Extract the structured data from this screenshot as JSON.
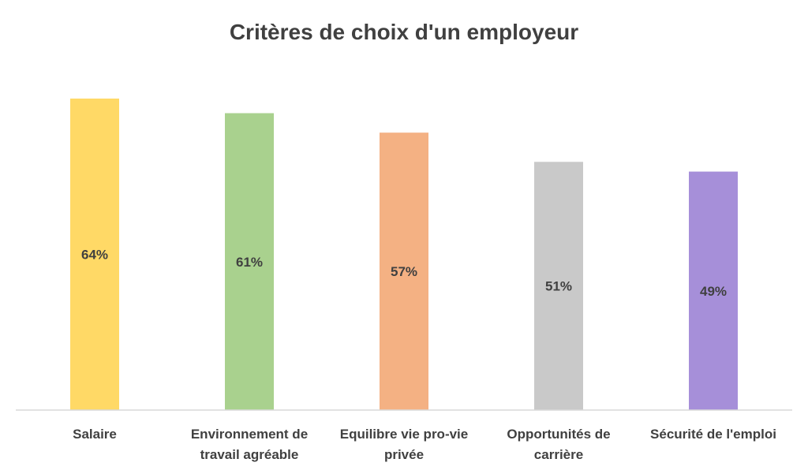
{
  "chart_data": {
    "type": "bar",
    "title": "Critères de choix d'un employeur",
    "categories": [
      [
        "Salaire"
      ],
      [
        "Environnement de",
        "travail agréable"
      ],
      [
        "Equilibre vie pro-vie",
        "privée"
      ],
      [
        "Opportunités de",
        "carrière"
      ],
      [
        "Sécurité de l'emploi"
      ]
    ],
    "values": [
      64,
      61,
      57,
      51,
      49
    ],
    "value_labels": [
      "64%",
      "61%",
      "57%",
      "51%",
      "49%"
    ],
    "colors": [
      "#FFD966",
      "#A9D18E",
      "#F4B183",
      "#C9C9C9",
      "#A68FD9"
    ],
    "xlabel": "",
    "ylabel": "",
    "ylim": [
      0,
      64
    ],
    "grid": false,
    "legend": "none"
  }
}
